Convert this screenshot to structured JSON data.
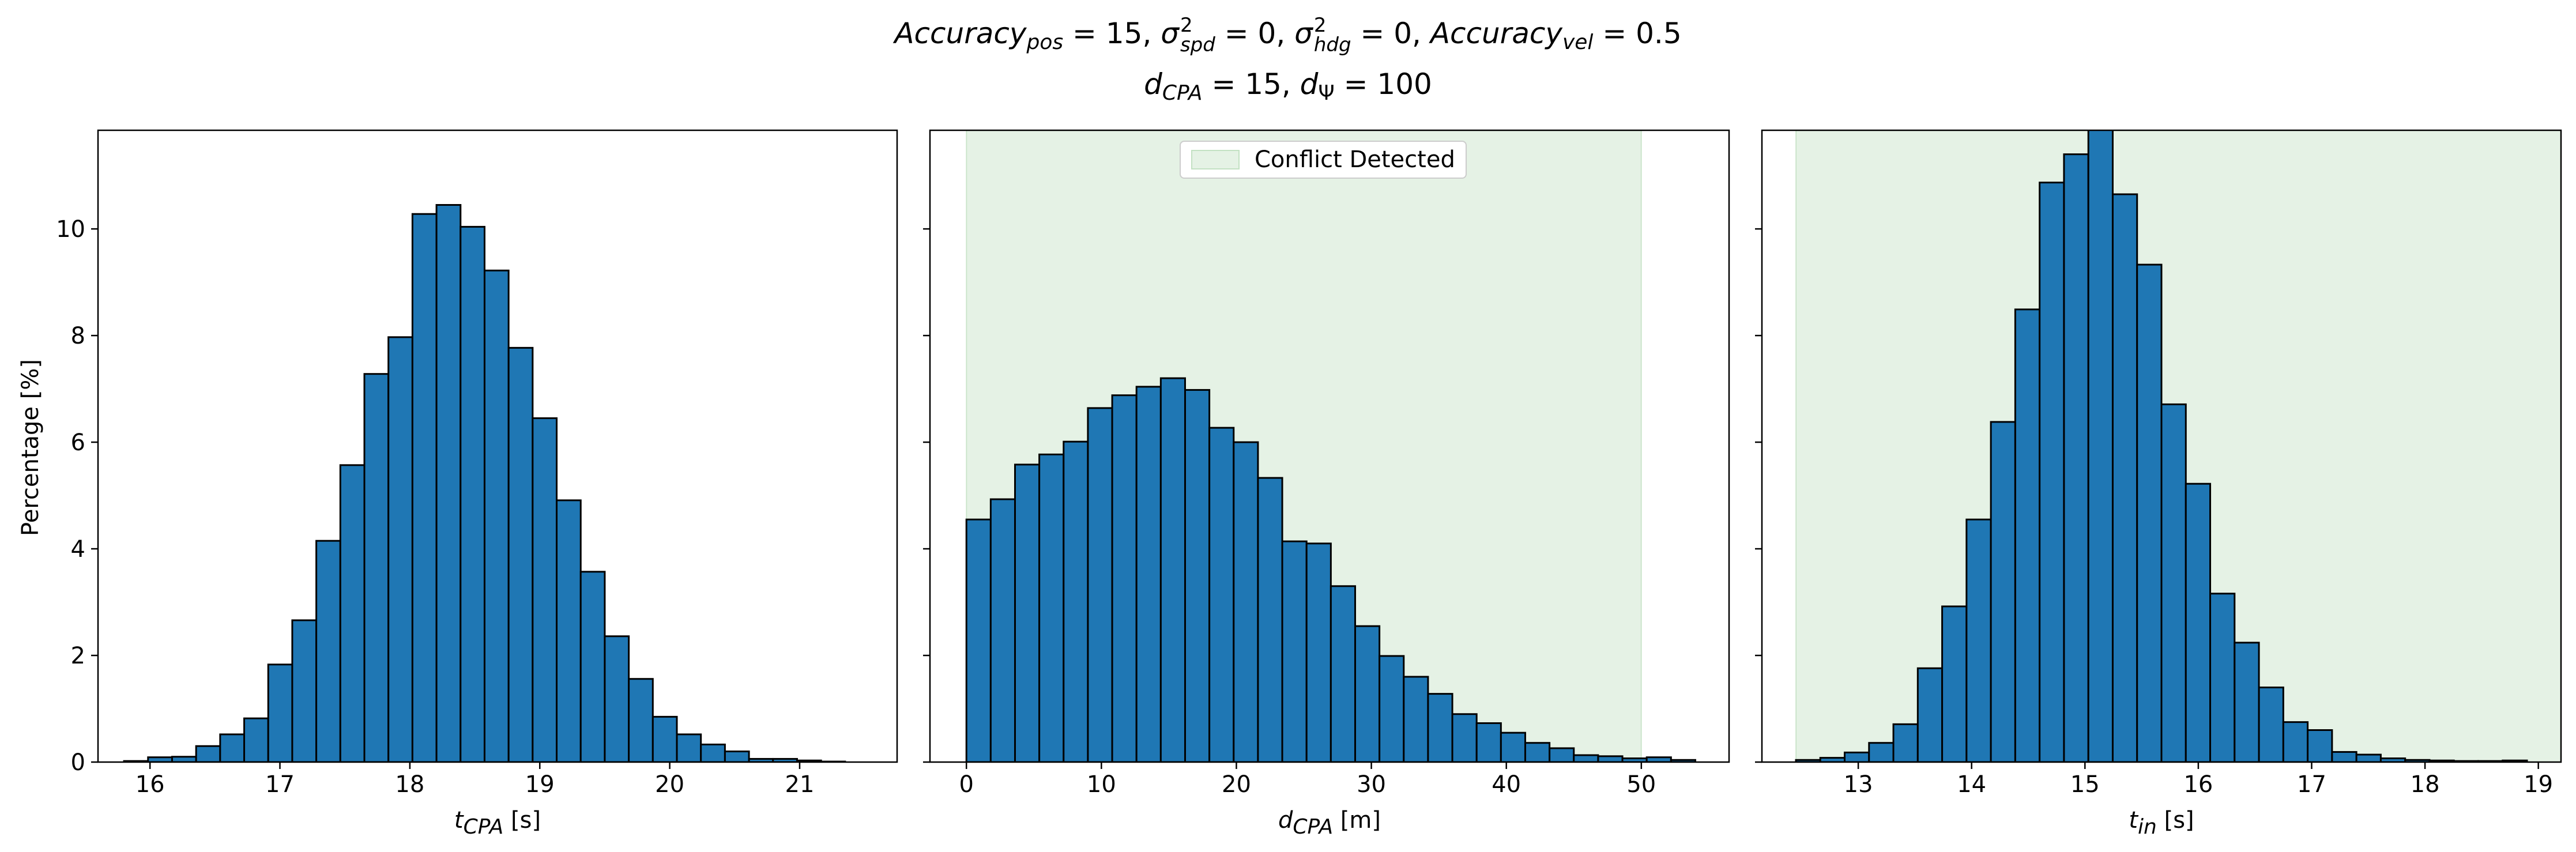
{
  "figure": {
    "title_line1": {
      "acc_pos_word": "Accuracy",
      "acc_pos_sub": "pos",
      "acc_pos_eq": " = 15, ",
      "sigma": "σ",
      "spd_sup": "2",
      "spd_sub": "spd",
      "spd_eq": " = 0, ",
      "hdg_sup": "2",
      "hdg_sub": "hdg",
      "hdg_eq": " = 0, ",
      "acc_vel_word": "Accuracy",
      "acc_vel_sub": "vel",
      "acc_vel_eq": " = 0.5"
    },
    "title_line2": {
      "dcpa_d": "d",
      "dcpa_sub": "CPA",
      "dcpa_eq": " = 15, ",
      "dpsi_d": "d",
      "dpsi_sub": "Ψ",
      "dpsi_eq": " = 100"
    },
    "ylabel": "Percentage [%]",
    "legend_label": "Conflict Detected",
    "xlabels": [
      {
        "var": "t",
        "sub": "CPA",
        "unit": " [s]"
      },
      {
        "var": "d",
        "sub": "CPA",
        "unit": " [m]"
      },
      {
        "var": "t",
        "sub": "in",
        "unit": " [s]"
      }
    ]
  },
  "colors": {
    "bar": "#1f77b4",
    "edge": "#000000",
    "band": "rgba(0,128,0,0.1)"
  },
  "chart_data": [
    {
      "type": "bar",
      "histogram": true,
      "xlim": [
        15.6,
        21.75
      ],
      "ylim": [
        0,
        11.85
      ],
      "xticks": [
        16,
        17,
        18,
        19,
        20,
        21
      ],
      "yticks": [
        0,
        2,
        4,
        6,
        8,
        10
      ],
      "bin_edges": [
        15.8,
        15.985,
        16.17,
        16.355,
        16.54,
        16.725,
        16.91,
        17.095,
        17.28,
        17.465,
        17.65,
        17.835,
        18.02,
        18.205,
        18.39,
        18.575,
        18.76,
        18.945,
        19.13,
        19.315,
        19.5,
        19.685,
        19.87,
        20.055,
        20.24,
        20.425,
        20.61,
        20.795,
        20.98,
        21.165,
        21.35,
        21.535
      ],
      "values": [
        0.02,
        0.09,
        0.1,
        0.3,
        0.52,
        0.82,
        1.83,
        2.66,
        4.15,
        5.57,
        7.28,
        7.97,
        10.28,
        10.45,
        10.04,
        9.22,
        7.77,
        6.45,
        4.91,
        3.57,
        2.36,
        1.56,
        0.85,
        0.52,
        0.33,
        0.2,
        0.06,
        0.06,
        0.03,
        0.01,
        0.0
      ]
    },
    {
      "type": "bar",
      "histogram": true,
      "xlim": [
        -2.7,
        56.5
      ],
      "ylim": [
        0,
        11.85
      ],
      "xticks": [
        0,
        10,
        20,
        30,
        40,
        50
      ],
      "yticks": [
        0,
        2,
        4,
        6,
        8,
        10
      ],
      "shaded_region": [
        0,
        50
      ],
      "bin_edges": [
        0,
        1.8,
        3.6,
        5.4,
        7.2,
        9.0,
        10.8,
        12.6,
        14.4,
        16.2,
        18.0,
        19.8,
        21.6,
        23.4,
        25.2,
        27.0,
        28.8,
        30.6,
        32.4,
        34.2,
        36.0,
        37.8,
        39.6,
        41.4,
        43.2,
        45.0,
        46.8,
        48.6,
        50.4,
        52.2,
        54.0
      ],
      "values": [
        4.55,
        4.93,
        5.58,
        5.77,
        6.01,
        6.64,
        6.88,
        7.04,
        7.2,
        6.98,
        6.27,
        6.0,
        5.33,
        4.14,
        4.1,
        3.3,
        2.55,
        1.99,
        1.6,
        1.28,
        0.9,
        0.73,
        0.55,
        0.36,
        0.26,
        0.13,
        0.11,
        0.07,
        0.09,
        0.04
      ]
    },
    {
      "type": "bar",
      "histogram": true,
      "xlim": [
        12.15,
        19.2
      ],
      "ylim": [
        0,
        11.85
      ],
      "xticks": [
        13,
        14,
        15,
        16,
        17,
        18,
        19
      ],
      "yticks": [
        0,
        2,
        4,
        6,
        8,
        10
      ],
      "shaded_region": [
        12.45,
        19.2
      ],
      "bin_edges": [
        12.45,
        12.665,
        12.88,
        13.095,
        13.31,
        13.525,
        13.74,
        13.955,
        14.17,
        14.385,
        14.6,
        14.815,
        15.03,
        15.245,
        15.46,
        15.675,
        15.89,
        16.105,
        16.32,
        16.535,
        16.75,
        16.965,
        17.18,
        17.395,
        17.61,
        17.825,
        18.04,
        18.255,
        18.47,
        18.685,
        18.9,
        19.115
      ],
      "values": [
        0.04,
        0.08,
        0.18,
        0.36,
        0.71,
        1.76,
        2.92,
        4.55,
        6.38,
        8.49,
        10.87,
        11.4,
        11.95,
        10.65,
        9.33,
        6.71,
        5.22,
        3.16,
        2.24,
        1.4,
        0.75,
        0.6,
        0.19,
        0.14,
        0.07,
        0.04,
        0.03,
        0.02,
        0.02,
        0.03,
        0.0
      ]
    }
  ]
}
